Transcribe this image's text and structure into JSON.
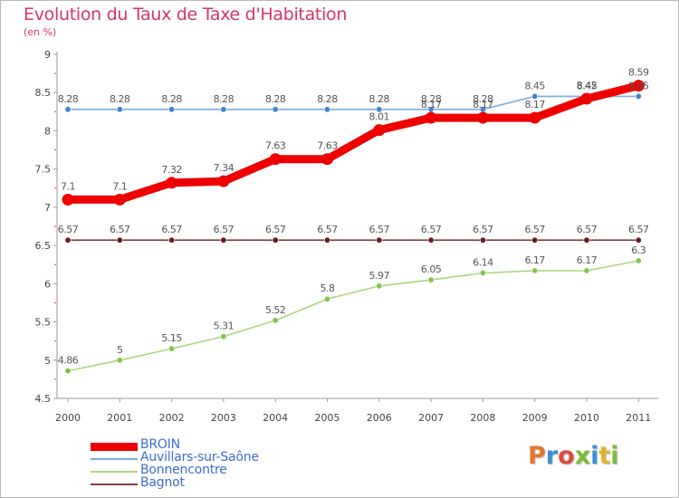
{
  "title": "Evolution du Taux de Taxe d'Habitation",
  "subtitle": "(en %)",
  "brand": {
    "text": "Proxiti",
    "letter_colors": [
      "#e3762d",
      "#3f8fd8",
      "#e04a3b",
      "#7dbb3a",
      "#3f8fd8",
      "#e3b22d",
      "#7dbb3a"
    ]
  },
  "chart_data": {
    "type": "line",
    "title": "Evolution du Taux de Taxe d'Habitation",
    "ylabel": "(en %)",
    "xlabel": "",
    "x": [
      "2000",
      "2001",
      "2002",
      "2003",
      "2004",
      "2005",
      "2006",
      "2007",
      "2008",
      "2009",
      "2010",
      "2011"
    ],
    "ylim": [
      4.5,
      9
    ],
    "yticks": [
      "4.5",
      "5",
      "5.5",
      "6",
      "6.5",
      "7",
      "7.5",
      "8",
      "8.5",
      "9"
    ],
    "grid": false,
    "legend_position": "bottom-left",
    "series": [
      {
        "name": "BROIN",
        "color": "#ee0000",
        "thick": true,
        "values": [
          7.1,
          7.1,
          7.32,
          7.34,
          7.63,
          7.63,
          8.01,
          8.17,
          8.17,
          8.17,
          8.42,
          8.59
        ],
        "labels": [
          "7.1",
          "7.1",
          "7.32",
          "7.34",
          "7.63",
          "7.63",
          "8.01",
          "8.17",
          "8.17",
          "8.17",
          "8.42",
          "8.59"
        ]
      },
      {
        "name": "Auvillars-sur-Saône",
        "color": "#7aaedf",
        "marker_color": "#3f86cf",
        "thick": false,
        "values": [
          8.28,
          8.28,
          8.28,
          8.28,
          8.28,
          8.28,
          8.28,
          8.28,
          8.28,
          8.45,
          8.45,
          8.45
        ],
        "labels": [
          "8.28",
          "8.28",
          "8.28",
          "8.28",
          "8.28",
          "8.28",
          "8.28",
          "8.28",
          "8.28",
          "8.45",
          "8.45",
          "8.45"
        ]
      },
      {
        "name": "Bonnencontre",
        "color": "#a9d77a",
        "marker_color": "#82c34a",
        "thick": false,
        "values": [
          4.86,
          5,
          5.15,
          5.31,
          5.52,
          5.8,
          5.97,
          6.05,
          6.14,
          6.17,
          6.17,
          6.3
        ],
        "labels": [
          "4.86",
          "5",
          "5.15",
          "5.31",
          "5.52",
          "5.8",
          "5.97",
          "6.05",
          "6.14",
          "6.17",
          "6.17",
          "6.3"
        ]
      },
      {
        "name": "Bagnot",
        "color": "#8a3a3a",
        "marker_color": "#6a1a1a",
        "thick": false,
        "values": [
          6.57,
          6.57,
          6.57,
          6.57,
          6.57,
          6.57,
          6.57,
          6.57,
          6.57,
          6.57,
          6.57,
          6.57
        ],
        "labels": [
          "6.57",
          "6.57",
          "6.57",
          "6.57",
          "6.57",
          "6.57",
          "6.57",
          "6.57",
          "6.57",
          "6.57",
          "6.57",
          "6.57"
        ]
      }
    ]
  }
}
